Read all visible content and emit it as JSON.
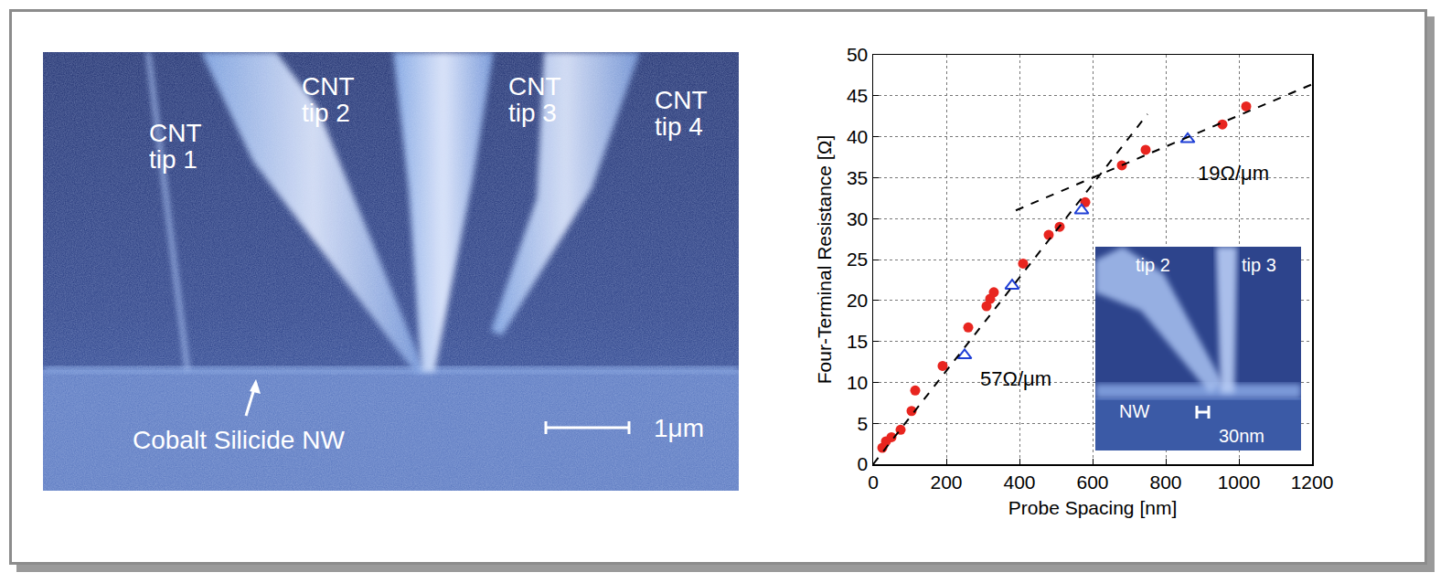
{
  "micrograph": {
    "labels": [
      "CNT tip 1",
      "CNT tip 2",
      "CNT tip 3",
      "CNT tip 4"
    ],
    "pointer_label": "Cobalt Silicide NW",
    "scale_bar": "1μm"
  },
  "chart_data": {
    "type": "scatter",
    "x_label": "Probe Spacing [nm]",
    "y_label": "Four-Terminal Resistance [Ω]",
    "series": [
      {
        "type": "scatter",
        "marker": "circle",
        "color": "#e8251f",
        "x": [
          25,
          35,
          50,
          75,
          105,
          115,
          190,
          260,
          310,
          320,
          330,
          410,
          480,
          510,
          580,
          680,
          745,
          955,
          1020
        ],
        "values": [
          2,
          2.8,
          3.3,
          4.2,
          6.5,
          9,
          12,
          16.7,
          19.3,
          20.2,
          21,
          24.5,
          28,
          29,
          32,
          36.5,
          38.4,
          41.5,
          43.7
        ]
      },
      {
        "type": "scatter",
        "marker": "open_triangle",
        "color": "#1f3fd6",
        "x": [
          250,
          380,
          570,
          860
        ],
        "values": [
          13.3,
          21.8,
          31,
          39.7
        ]
      },
      {
        "type": "line",
        "line_style": "dashed",
        "color": "#000000",
        "x": [
          0,
          750
        ],
        "values": [
          0,
          42.75
        ]
      },
      {
        "type": "line",
        "line_style": "dashed",
        "color": "#000000",
        "x": [
          390,
          1200
        ],
        "values": [
          31,
          46.4
        ]
      }
    ],
    "annotations": [
      {
        "text": "57Ω/μm",
        "x": 390,
        "y": 10.4
      },
      {
        "text": "19Ω/μm",
        "x": 985,
        "y": 35.5
      }
    ],
    "xlim": [
      0,
      1200
    ],
    "xticks": [
      0,
      200,
      400,
      600,
      800,
      1000,
      1200
    ],
    "ylim": [
      0,
      50
    ],
    "yticks": [
      0,
      5,
      10,
      15,
      20,
      25,
      30,
      35,
      40,
      45,
      50
    ],
    "grid": true,
    "inset": {
      "labels": [
        "tip 2",
        "tip 3",
        "NW"
      ],
      "scale_bar": "30nm"
    }
  }
}
